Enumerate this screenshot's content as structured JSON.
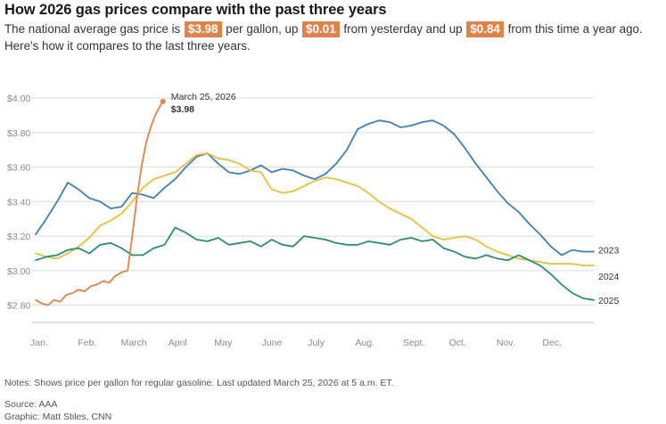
{
  "header": {
    "title": "How 2026 gas prices compare with the past three years",
    "subtitle_part1": "The national average gas price is",
    "badge_current": "$3.98",
    "subtitle_part2": "per gallon, up",
    "badge_day": "$0.01",
    "subtitle_part3": "from yesterday and up",
    "badge_year": "$0.84",
    "subtitle_part4": "from this time a year ago. Here's how it compares to the last three years."
  },
  "footer": {
    "notes": "Notes: Shows price per gallon for regular gasoline. Last updated March 25, 2026 at 5 a.m. ET.",
    "source": "Source: AAA",
    "graphic": "Graphic: Matt Stiles, CNN"
  },
  "colors": {
    "s2023": "#3f7fb5",
    "s2024": "#e6c03d",
    "s2025": "#2e8b7a",
    "s2026": "#e0834a",
    "grid": "#dcdcdc"
  },
  "chart_data": {
    "type": "line",
    "title": "How 2026 gas prices compare with the past three years",
    "xlabel": "",
    "ylabel": "",
    "x_unit": "day of year",
    "xlim": [
      1,
      365
    ],
    "ylim": [
      2.7,
      4.0
    ],
    "y_ticks": [
      2.8,
      3.0,
      3.2,
      3.4,
      3.6,
      3.8,
      4.0
    ],
    "y_tick_labels": [
      "$2.80",
      "$3.00",
      "$3.20",
      "$3.40",
      "$3.60",
      "$3.80",
      "$4.00"
    ],
    "x_tick_labels": [
      "Jan.",
      "Feb.",
      "March",
      "April",
      "May",
      "June",
      "July",
      "Aug.",
      "Sept.",
      "Oct.",
      "Nov.",
      "Dec."
    ],
    "x_tick_days": [
      1,
      32,
      60,
      91,
      121,
      152,
      182,
      213,
      244,
      274,
      305,
      335
    ],
    "grid": true,
    "annotation": {
      "date": "March 25, 2026",
      "value_label": "$3.98",
      "day": 84,
      "value": 3.98
    },
    "series": [
      {
        "name": "2023",
        "color_key": "s2023",
        "x": [
          1,
          8,
          15,
          22,
          29,
          36,
          43,
          50,
          57,
          64,
          71,
          78,
          85,
          92,
          99,
          106,
          113,
          120,
          127,
          134,
          141,
          148,
          155,
          162,
          169,
          176,
          183,
          190,
          197,
          204,
          211,
          218,
          225,
          232,
          239,
          246,
          253,
          260,
          267,
          274,
          281,
          288,
          295,
          302,
          309,
          316,
          323,
          330,
          337,
          344,
          351,
          358,
          365
        ],
        "values": [
          3.21,
          3.3,
          3.4,
          3.51,
          3.47,
          3.42,
          3.4,
          3.36,
          3.37,
          3.45,
          3.44,
          3.42,
          3.48,
          3.53,
          3.6,
          3.66,
          3.68,
          3.62,
          3.57,
          3.56,
          3.58,
          3.61,
          3.57,
          3.59,
          3.58,
          3.55,
          3.53,
          3.56,
          3.62,
          3.7,
          3.82,
          3.85,
          3.87,
          3.86,
          3.83,
          3.84,
          3.86,
          3.87,
          3.84,
          3.79,
          3.71,
          3.62,
          3.54,
          3.46,
          3.39,
          3.34,
          3.27,
          3.21,
          3.14,
          3.09,
          3.12,
          3.11,
          3.11
        ]
      },
      {
        "name": "2024",
        "color_key": "s2024",
        "x": [
          1,
          8,
          15,
          22,
          29,
          36,
          43,
          50,
          57,
          64,
          71,
          78,
          85,
          92,
          99,
          106,
          113,
          120,
          127,
          134,
          141,
          148,
          155,
          162,
          169,
          176,
          183,
          190,
          197,
          204,
          211,
          218,
          225,
          232,
          239,
          246,
          253,
          260,
          267,
          274,
          281,
          288,
          295,
          302,
          309,
          316,
          323,
          330,
          337,
          344,
          351,
          358,
          365
        ],
        "values": [
          3.1,
          3.08,
          3.07,
          3.1,
          3.14,
          3.19,
          3.26,
          3.29,
          3.33,
          3.4,
          3.48,
          3.53,
          3.55,
          3.57,
          3.62,
          3.67,
          3.68,
          3.65,
          3.64,
          3.62,
          3.58,
          3.57,
          3.47,
          3.45,
          3.46,
          3.49,
          3.52,
          3.54,
          3.53,
          3.51,
          3.49,
          3.45,
          3.4,
          3.36,
          3.33,
          3.3,
          3.25,
          3.2,
          3.18,
          3.19,
          3.2,
          3.18,
          3.14,
          3.11,
          3.09,
          3.07,
          3.06,
          3.05,
          3.04,
          3.04,
          3.04,
          3.03,
          3.03
        ]
      },
      {
        "name": "2025",
        "color_key": "s2025",
        "x": [
          1,
          8,
          15,
          22,
          29,
          36,
          43,
          50,
          57,
          64,
          71,
          78,
          85,
          92,
          99,
          106,
          113,
          120,
          127,
          134,
          141,
          148,
          155,
          162,
          169,
          176,
          183,
          190,
          197,
          204,
          211,
          218,
          225,
          232,
          239,
          246,
          253,
          260,
          267,
          274,
          281,
          288,
          295,
          302,
          309,
          316,
          323,
          330,
          337,
          344,
          351,
          358,
          365
        ],
        "values": [
          3.06,
          3.08,
          3.09,
          3.12,
          3.13,
          3.1,
          3.15,
          3.16,
          3.13,
          3.09,
          3.09,
          3.13,
          3.15,
          3.25,
          3.22,
          3.18,
          3.17,
          3.19,
          3.15,
          3.16,
          3.17,
          3.14,
          3.18,
          3.15,
          3.14,
          3.2,
          3.19,
          3.18,
          3.16,
          3.15,
          3.15,
          3.17,
          3.16,
          3.15,
          3.18,
          3.19,
          3.17,
          3.18,
          3.13,
          3.11,
          3.08,
          3.07,
          3.09,
          3.07,
          3.06,
          3.09,
          3.06,
          3.03,
          2.98,
          2.92,
          2.87,
          2.84,
          2.83
        ]
      },
      {
        "name": "2026",
        "color_key": "s2026",
        "x": [
          1,
          5,
          9,
          13,
          17,
          21,
          25,
          29,
          33,
          37,
          41,
          45,
          49,
          53,
          57,
          61,
          64,
          67,
          70,
          73,
          76,
          79,
          82,
          84
        ],
        "values": [
          2.83,
          2.81,
          2.8,
          2.83,
          2.82,
          2.86,
          2.87,
          2.89,
          2.88,
          2.91,
          2.92,
          2.94,
          2.93,
          2.97,
          2.99,
          3.0,
          3.2,
          3.42,
          3.6,
          3.74,
          3.83,
          3.9,
          3.95,
          3.98
        ]
      }
    ]
  }
}
